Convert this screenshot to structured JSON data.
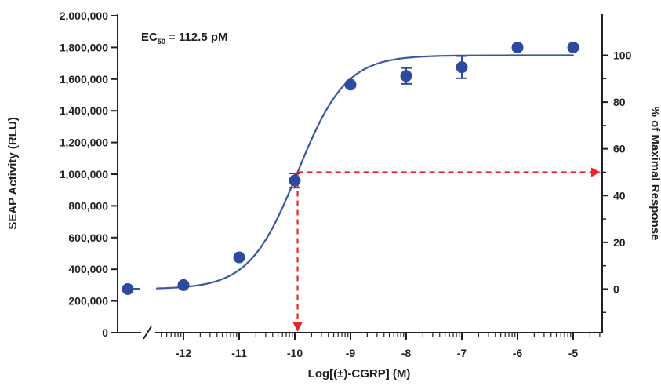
{
  "chart_data": {
    "type": "scatter",
    "xlabel": "Log[(±)-CGRP] (M)",
    "ylabel": "SEAP Activity (RLU)",
    "y2label": "% of Maximal Response",
    "annotation": {
      "prefix": "EC",
      "subscript": "50",
      "suffix": " = 112.5 pM"
    },
    "x_ticks": [
      "-12",
      "-11",
      "-10",
      "-9",
      "-8",
      "-7",
      "-6",
      "-5"
    ],
    "y_ticks": [
      "0",
      "200,000",
      "400,000",
      "600,000",
      "800,000",
      "1,000,000",
      "1,200,000",
      "1,400,000",
      "1,600,000",
      "1,800,000",
      "2,000,000"
    ],
    "y2_ticks": [
      "0",
      "20",
      "40",
      "60",
      "80",
      "100"
    ],
    "ylim": [
      0,
      2000000
    ],
    "xlim": [
      -13,
      -4.5
    ],
    "axis_break": true,
    "points": [
      {
        "x": -13,
        "y": 275000,
        "err": 0
      },
      {
        "x": -12,
        "y": 300000,
        "err": 0
      },
      {
        "x": -11,
        "y": 475000,
        "err": 0
      },
      {
        "x": -10,
        "y": 960000,
        "err": 45000
      },
      {
        "x": -9,
        "y": 1565000,
        "err": 0
      },
      {
        "x": -8,
        "y": 1620000,
        "err": 50000
      },
      {
        "x": -7,
        "y": 1675000,
        "err": 70000
      },
      {
        "x": -6,
        "y": 1800000,
        "err": 15000
      },
      {
        "x": -5,
        "y": 1800000,
        "err": 15000
      }
    ],
    "fit": {
      "bottom": 275000,
      "top": 1750000,
      "log_ec50": -9.95,
      "hill": 1.0
    },
    "ec50_guide": {
      "x": -9.95,
      "y": 1012500,
      "percent": 50
    },
    "colors": {
      "points": "#2e4a9e",
      "curve": "#3a56a5",
      "guide": "#e8262a",
      "axis": "#231f20"
    }
  }
}
